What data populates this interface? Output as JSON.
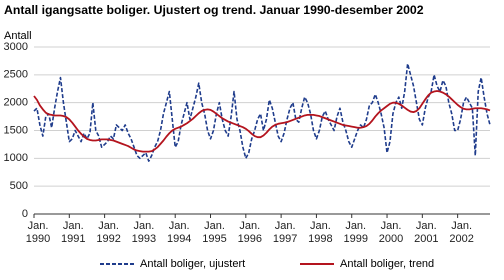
{
  "chart_data": {
    "type": "line",
    "title": "Antall igangsatte boliger. Ujustert og trend. Januar 1990-desember 2002",
    "y_label": "Antall",
    "categories": [
      "Jan. 1990",
      null,
      null,
      null,
      null,
      null,
      null,
      null,
      null,
      null,
      null,
      null,
      "Jan. 1991",
      null,
      null,
      null,
      null,
      null,
      null,
      null,
      null,
      null,
      null,
      null,
      "Jan. 1992",
      null,
      null,
      null,
      null,
      null,
      null,
      null,
      null,
      null,
      null,
      null,
      "Jan. 1993",
      null,
      null,
      null,
      null,
      null,
      null,
      null,
      null,
      null,
      null,
      null,
      "Jan. 1994",
      null,
      null,
      null,
      null,
      null,
      null,
      null,
      null,
      null,
      null,
      null,
      "Jan. 1995",
      null,
      null,
      null,
      null,
      null,
      null,
      null,
      null,
      null,
      null,
      null,
      "Jan. 1996",
      null,
      null,
      null,
      null,
      null,
      null,
      null,
      null,
      null,
      null,
      null,
      "Jan. 1997",
      null,
      null,
      null,
      null,
      null,
      null,
      null,
      null,
      null,
      null,
      null,
      "Jan. 1998",
      null,
      null,
      null,
      null,
      null,
      null,
      null,
      null,
      null,
      null,
      null,
      "Jan. 1999",
      null,
      null,
      null,
      null,
      null,
      null,
      null,
      null,
      null,
      null,
      null,
      "Jan. 2000",
      null,
      null,
      null,
      null,
      null,
      null,
      null,
      null,
      null,
      null,
      null,
      "Jan. 2001",
      null,
      null,
      null,
      null,
      null,
      null,
      null,
      null,
      null,
      null,
      null,
      "Jan. 2002",
      null,
      null,
      null,
      null,
      null,
      null,
      null,
      null,
      null,
      null,
      null
    ],
    "series": [
      {
        "name": "Antall boliger, ujustert",
        "color": "#1f3c8c",
        "dashed": true,
        "values": [
          1850,
          1900,
          1600,
          1400,
          1750,
          1800,
          1550,
          1900,
          2200,
          2450,
          2000,
          1650,
          1300,
          1350,
          1500,
          1400,
          1300,
          1450,
          1350,
          1450,
          2000,
          1500,
          1400,
          1200,
          1250,
          1300,
          1400,
          1350,
          1600,
          1550,
          1500,
          1600,
          1450,
          1350,
          1200,
          1050,
          1000,
          1050,
          1100,
          950,
          1050,
          1200,
          1300,
          1500,
          1800,
          2000,
          2200,
          1700,
          1200,
          1300,
          1600,
          1800,
          2000,
          1700,
          1900,
          2100,
          2350,
          2000,
          1800,
          1500,
          1350,
          1500,
          1800,
          2000,
          1700,
          1500,
          1400,
          1750,
          2200,
          1700,
          1500,
          1200,
          1000,
          1100,
          1350,
          1500,
          1700,
          1800,
          1500,
          1700,
          2050,
          1900,
          1650,
          1400,
          1300,
          1450,
          1700,
          1900,
          2000,
          1700,
          1650,
          1900,
          2100,
          2000,
          1800,
          1500,
          1350,
          1500,
          1750,
          1850,
          1700,
          1600,
          1500,
          1750,
          1900,
          1650,
          1500,
          1300,
          1200,
          1350,
          1500,
          1600,
          1550,
          1700,
          1950,
          2000,
          2150,
          2000,
          1800,
          1550,
          1100,
          1300,
          1800,
          2000,
          2100,
          1900,
          2200,
          2700,
          2500,
          2300,
          2000,
          1700,
          1600,
          1900,
          2100,
          2200,
          2500,
          2300,
          2200,
          2400,
          2300,
          2000,
          1800,
          1500,
          1500,
          1700,
          2000,
          2100,
          2000,
          1900,
          1050,
          2200,
          2450,
          2100,
          1800,
          1600
        ]
      },
      {
        "name": "Antall boliger, trend",
        "color": "#b4141e",
        "dashed": false,
        "values": [
          2120,
          2050,
          1950,
          1880,
          1820,
          1790,
          1780,
          1770,
          1770,
          1770,
          1760,
          1740,
          1700,
          1640,
          1570,
          1500,
          1440,
          1390,
          1350,
          1330,
          1320,
          1320,
          1330,
          1340,
          1340,
          1340,
          1330,
          1320,
          1300,
          1280,
          1260,
          1240,
          1220,
          1190,
          1160,
          1140,
          1130,
          1120,
          1120,
          1120,
          1130,
          1160,
          1200,
          1260,
          1320,
          1390,
          1450,
          1500,
          1530,
          1550,
          1570,
          1600,
          1630,
          1670,
          1710,
          1760,
          1810,
          1850,
          1870,
          1880,
          1870,
          1840,
          1800,
          1760,
          1720,
          1690,
          1660,
          1640,
          1620,
          1600,
          1580,
          1560,
          1530,
          1490,
          1440,
          1400,
          1380,
          1380,
          1410,
          1460,
          1520,
          1570,
          1600,
          1620,
          1630,
          1640,
          1650,
          1670,
          1690,
          1710,
          1730,
          1750,
          1770,
          1780,
          1780,
          1780,
          1770,
          1760,
          1740,
          1720,
          1700,
          1680,
          1660,
          1640,
          1620,
          1600,
          1590,
          1580,
          1570,
          1560,
          1550,
          1550,
          1560,
          1580,
          1620,
          1680,
          1750,
          1810,
          1860,
          1900,
          1940,
          1980,
          2000,
          2000,
          1980,
          1950,
          1910,
          1870,
          1840,
          1830,
          1850,
          1900,
          1980,
          2060,
          2130,
          2180,
          2200,
          2210,
          2200,
          2180,
          2150,
          2110,
          2060,
          2010,
          1960,
          1920,
          1890,
          1880,
          1880,
          1890,
          1900,
          1900,
          1900,
          1890,
          1880,
          1860
        ]
      }
    ],
    "ylim": [
      0,
      3000
    ],
    "yticks": [
      0,
      500,
      1000,
      1500,
      2000,
      2500,
      3000
    ],
    "grid": true
  }
}
